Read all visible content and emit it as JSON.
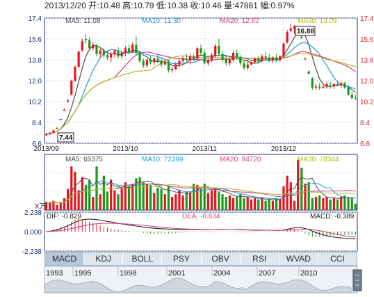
{
  "header": {
    "text": "2013/12/20 开:10.48 高:10.79 低:10.38 收:10.46 量:47881 幅:0.97%"
  },
  "price_panel": {
    "ma5_label": "MA5: 11.08",
    "ma10_label": "MA10: 11.30",
    "ma20_label": "MA20: 12.62",
    "ma30_label": "MA30: 13.09",
    "high_tag": "16.88",
    "low_tag": "7.44",
    "y_ticks": [
      "17.4",
      "15.6",
      "13.8",
      "12.0",
      "10.2",
      "8.4",
      "6.6"
    ],
    "x_ticks": [
      "2013/09",
      "2013/10",
      "2013/11",
      "2013/12"
    ]
  },
  "volume_panel": {
    "ma5_label": "MA5: 65375",
    "ma10_label": "MA10: 72399",
    "ma20_label": "MA20: 94720",
    "ma30_label": "MA30: 78344",
    "unit_label": "X万"
  },
  "macd_panel": {
    "dif_label": "DIF: -0.829",
    "dea_label": "DEA: -0.634",
    "macd_label": "MACD: -0.389",
    "y_ticks": [
      "2.238",
      "0.000",
      "-2.238"
    ]
  },
  "tabs": [
    "MACD",
    "KDJ",
    "BOLL",
    "PSY",
    "OBV",
    "RSI",
    "WVAD",
    "CCI"
  ],
  "timeline": {
    "years": [
      "1993",
      "1995",
      "1998",
      "2001",
      "2004",
      "2007",
      "2010"
    ]
  },
  "colors": {
    "up": "#e8141c",
    "down": "#179a17",
    "ma5": "#4a4a4a",
    "ma10": "#1a9bd0",
    "ma20": "#d0408a",
    "ma30": "#b5b71a",
    "axis": "#1e2f7a"
  },
  "chart_data": {
    "type": "candlestick",
    "ylim": [
      6.6,
      17.4
    ],
    "volume_ylim": [
      0,
      400000
    ],
    "macd_ylim": [
      -2.238,
      2.238
    ],
    "candles": [
      {
        "o": 7.3,
        "h": 7.5,
        "l": 7.2,
        "c": 7.4,
        "v": 60000
      },
      {
        "o": 7.4,
        "h": 7.6,
        "l": 7.3,
        "c": 7.5,
        "v": 55000
      },
      {
        "o": 7.5,
        "h": 7.8,
        "l": 7.4,
        "c": 7.7,
        "v": 70000
      },
      {
        "o": 7.9,
        "h": 8.0,
        "l": 7.8,
        "c": 7.9,
        "v": 40000
      },
      {
        "o": 8.6,
        "h": 8.7,
        "l": 8.6,
        "c": 8.7,
        "v": 60000
      },
      {
        "o": 9.4,
        "h": 9.6,
        "l": 9.4,
        "c": 9.5,
        "v": 90000
      },
      {
        "o": 10.2,
        "h": 10.4,
        "l": 10.1,
        "c": 10.3,
        "v": 160000
      },
      {
        "o": 10.8,
        "h": 12.1,
        "l": 10.7,
        "c": 12.0,
        "v": 330000
      },
      {
        "o": 12.0,
        "h": 13.3,
        "l": 11.9,
        "c": 13.2,
        "v": 290000
      },
      {
        "o": 13.2,
        "h": 14.6,
        "l": 13.1,
        "c": 14.5,
        "v": 150000
      },
      {
        "o": 14.6,
        "h": 15.6,
        "l": 14.5,
        "c": 15.4,
        "v": 250000
      },
      {
        "o": 15.6,
        "h": 16.0,
        "l": 15.2,
        "c": 15.5,
        "v": 190000
      },
      {
        "o": 15.5,
        "h": 15.7,
        "l": 14.6,
        "c": 14.8,
        "v": 230000
      },
      {
        "o": 14.8,
        "h": 15.3,
        "l": 14.6,
        "c": 15.1,
        "v": 100000
      },
      {
        "o": 15.0,
        "h": 15.2,
        "l": 14.1,
        "c": 14.3,
        "v": 330000
      },
      {
        "o": 14.3,
        "h": 14.8,
        "l": 14.0,
        "c": 14.6,
        "v": 120000
      },
      {
        "o": 14.6,
        "h": 14.8,
        "l": 14.0,
        "c": 14.2,
        "v": 260000
      },
      {
        "o": 14.2,
        "h": 14.6,
        "l": 13.8,
        "c": 14.0,
        "v": 140000
      },
      {
        "o": 14.0,
        "h": 14.5,
        "l": 13.6,
        "c": 14.3,
        "v": 230000
      },
      {
        "o": 14.3,
        "h": 14.7,
        "l": 14.0,
        "c": 14.6,
        "v": 150000
      },
      {
        "o": 14.6,
        "h": 14.9,
        "l": 13.9,
        "c": 14.1,
        "v": 120000
      },
      {
        "o": 14.1,
        "h": 14.6,
        "l": 13.9,
        "c": 14.4,
        "v": 170000
      },
      {
        "o": 14.4,
        "h": 15.0,
        "l": 14.1,
        "c": 14.8,
        "v": 210000
      },
      {
        "o": 14.8,
        "h": 15.1,
        "l": 14.3,
        "c": 14.5,
        "v": 180000
      },
      {
        "o": 14.5,
        "h": 15.3,
        "l": 14.4,
        "c": 15.1,
        "v": 200000
      },
      {
        "o": 15.1,
        "h": 15.8,
        "l": 14.2,
        "c": 14.4,
        "v": 240000
      },
      {
        "o": 14.4,
        "h": 14.6,
        "l": 13.5,
        "c": 13.7,
        "v": 250000
      },
      {
        "o": 13.7,
        "h": 13.9,
        "l": 13.1,
        "c": 13.3,
        "v": 210000
      },
      {
        "o": 13.3,
        "h": 13.9,
        "l": 13.1,
        "c": 13.8,
        "v": 200000
      },
      {
        "o": 13.8,
        "h": 14.1,
        "l": 13.4,
        "c": 13.6,
        "v": 190000
      },
      {
        "o": 13.6,
        "h": 14.0,
        "l": 13.3,
        "c": 13.9,
        "v": 130000
      },
      {
        "o": 13.9,
        "h": 14.2,
        "l": 13.5,
        "c": 13.7,
        "v": 170000
      },
      {
        "o": 13.7,
        "h": 14.0,
        "l": 13.2,
        "c": 13.4,
        "v": 160000
      },
      {
        "o": 13.4,
        "h": 13.8,
        "l": 13.3,
        "c": 13.6,
        "v": 120000
      },
      {
        "o": 13.6,
        "h": 13.8,
        "l": 12.7,
        "c": 12.9,
        "v": 180000
      },
      {
        "o": 12.9,
        "h": 13.2,
        "l": 12.7,
        "c": 13.0,
        "v": 100000
      },
      {
        "o": 13.0,
        "h": 13.6,
        "l": 12.9,
        "c": 13.4,
        "v": 120000
      },
      {
        "o": 13.4,
        "h": 13.9,
        "l": 13.2,
        "c": 13.7,
        "v": 150000
      },
      {
        "o": 13.7,
        "h": 14.1,
        "l": 13.5,
        "c": 13.9,
        "v": 110000
      },
      {
        "o": 13.9,
        "h": 14.3,
        "l": 13.6,
        "c": 13.8,
        "v": 140000
      },
      {
        "o": 13.8,
        "h": 14.3,
        "l": 13.4,
        "c": 14.1,
        "v": 130000
      },
      {
        "o": 14.1,
        "h": 14.3,
        "l": 13.7,
        "c": 13.9,
        "v": 200000
      },
      {
        "o": 13.9,
        "h": 14.9,
        "l": 13.8,
        "c": 14.8,
        "v": 190000
      },
      {
        "o": 14.8,
        "h": 15.1,
        "l": 14.2,
        "c": 14.4,
        "v": 160000
      },
      {
        "o": 14.4,
        "h": 14.7,
        "l": 13.4,
        "c": 13.5,
        "v": 200000
      },
      {
        "o": 13.5,
        "h": 14.0,
        "l": 13.3,
        "c": 13.8,
        "v": 130000
      },
      {
        "o": 13.8,
        "h": 14.4,
        "l": 13.6,
        "c": 14.2,
        "v": 150000
      },
      {
        "o": 14.2,
        "h": 15.2,
        "l": 14.0,
        "c": 15.0,
        "v": 170000
      },
      {
        "o": 15.0,
        "h": 15.6,
        "l": 14.2,
        "c": 14.3,
        "v": 140000
      },
      {
        "o": 14.3,
        "h": 14.6,
        "l": 13.6,
        "c": 13.8,
        "v": 120000
      },
      {
        "o": 13.8,
        "h": 14.1,
        "l": 13.3,
        "c": 13.5,
        "v": 100000
      },
      {
        "o": 13.5,
        "h": 14.0,
        "l": 13.3,
        "c": 13.8,
        "v": 110000
      },
      {
        "o": 13.8,
        "h": 14.6,
        "l": 13.6,
        "c": 14.4,
        "v": 90000
      },
      {
        "o": 14.4,
        "h": 14.7,
        "l": 13.8,
        "c": 14.0,
        "v": 100000
      },
      {
        "o": 14.0,
        "h": 14.2,
        "l": 13.3,
        "c": 13.5,
        "v": 120000
      },
      {
        "o": 13.5,
        "h": 13.8,
        "l": 12.9,
        "c": 13.1,
        "v": 90000
      },
      {
        "o": 13.1,
        "h": 13.6,
        "l": 12.9,
        "c": 13.4,
        "v": 100000
      },
      {
        "o": 13.4,
        "h": 13.7,
        "l": 13.3,
        "c": 13.6,
        "v": 80000
      },
      {
        "o": 13.6,
        "h": 14.0,
        "l": 13.5,
        "c": 13.9,
        "v": 90000
      },
      {
        "o": 13.9,
        "h": 14.1,
        "l": 13.5,
        "c": 13.7,
        "v": 80000
      },
      {
        "o": 13.7,
        "h": 14.3,
        "l": 13.6,
        "c": 14.1,
        "v": 90000
      },
      {
        "o": 14.1,
        "h": 14.5,
        "l": 13.8,
        "c": 14.0,
        "v": 70000
      },
      {
        "o": 14.0,
        "h": 14.3,
        "l": 13.6,
        "c": 13.8,
        "v": 80000
      },
      {
        "o": 13.8,
        "h": 14.1,
        "l": 13.5,
        "c": 14.0,
        "v": 70000
      },
      {
        "o": 14.0,
        "h": 14.3,
        "l": 13.6,
        "c": 13.8,
        "v": 90000
      },
      {
        "o": 13.8,
        "h": 14.2,
        "l": 13.6,
        "c": 14.1,
        "v": 80000
      },
      {
        "o": 14.1,
        "h": 15.3,
        "l": 14.0,
        "c": 15.2,
        "v": 180000
      },
      {
        "o": 15.3,
        "h": 16.4,
        "l": 15.2,
        "c": 16.2,
        "v": 260000
      },
      {
        "o": 16.3,
        "h": 16.9,
        "l": 16.2,
        "c": 16.5,
        "v": 210000
      },
      {
        "o": 16.5,
        "h": 16.8,
        "l": 16.0,
        "c": 16.7,
        "v": 70000
      },
      {
        "o": 16.6,
        "h": 16.7,
        "l": 16.4,
        "c": 16.6,
        "v": 380000
      },
      {
        "o": 15.8,
        "h": 15.9,
        "l": 15.6,
        "c": 15.7,
        "v": 320000
      },
      {
        "o": 13.9,
        "h": 14.0,
        "l": 13.8,
        "c": 13.9,
        "v": 200000
      },
      {
        "o": 12.8,
        "h": 12.9,
        "l": 12.5,
        "c": 12.6,
        "v": 210000
      },
      {
        "o": 12.2,
        "h": 12.3,
        "l": 11.2,
        "c": 11.4,
        "v": 90000
      },
      {
        "o": 11.4,
        "h": 11.7,
        "l": 11.2,
        "c": 11.5,
        "v": 100000
      },
      {
        "o": 11.5,
        "h": 11.8,
        "l": 11.2,
        "c": 11.4,
        "v": 110000
      },
      {
        "o": 11.4,
        "h": 11.6,
        "l": 11.3,
        "c": 11.5,
        "v": 90000
      },
      {
        "o": 11.5,
        "h": 11.9,
        "l": 11.3,
        "c": 11.7,
        "v": 100000
      },
      {
        "o": 11.6,
        "h": 11.9,
        "l": 11.3,
        "c": 11.5,
        "v": 80000
      },
      {
        "o": 11.5,
        "h": 11.8,
        "l": 11.3,
        "c": 11.7,
        "v": 90000
      },
      {
        "o": 11.7,
        "h": 11.9,
        "l": 11.5,
        "c": 11.6,
        "v": 80000
      },
      {
        "o": 11.6,
        "h": 11.9,
        "l": 11.4,
        "c": 11.8,
        "v": 100000
      },
      {
        "o": 11.8,
        "h": 11.9,
        "l": 11.3,
        "c": 11.4,
        "v": 110000
      },
      {
        "o": 11.4,
        "h": 11.6,
        "l": 10.7,
        "c": 10.8,
        "v": 100000
      },
      {
        "o": 10.8,
        "h": 11.0,
        "l": 10.4,
        "c": 10.5,
        "v": 90000
      },
      {
        "o": 10.48,
        "h": 10.79,
        "l": 10.38,
        "c": 10.46,
        "v": 47881
      }
    ],
    "macd_bars": [
      0.05,
      0.1,
      0.2,
      0.3,
      0.45,
      0.6,
      0.8,
      1.1,
      1.4,
      1.55,
      1.45,
      1.3,
      1.15,
      1.0,
      0.85,
      0.7,
      0.55,
      0.45,
      0.35,
      0.28,
      0.2,
      0.15,
      0.1,
      0.06,
      0.02,
      -0.02,
      -0.08,
      -0.14,
      -0.2,
      -0.22,
      -0.24,
      -0.22,
      -0.2,
      -0.18,
      -0.2,
      -0.22,
      -0.18,
      -0.14,
      -0.1,
      -0.08,
      -0.06,
      -0.05,
      -0.03,
      -0.02,
      -0.04,
      -0.06,
      -0.05,
      -0.03,
      -0.02,
      -0.01,
      -0.03,
      -0.05,
      -0.06,
      -0.05,
      -0.07,
      -0.08,
      -0.07,
      -0.06,
      -0.05,
      -0.04,
      -0.03,
      -0.04,
      -0.05,
      -0.04,
      -0.05,
      -0.04,
      0.05,
      0.15,
      0.25,
      0.3,
      0.28,
      0.1,
      -0.2,
      -0.45,
      -0.6,
      -0.65,
      -0.62,
      -0.55,
      -0.5,
      -0.46,
      -0.43,
      -0.4,
      -0.38,
      -0.38,
      -0.39,
      -0.39,
      -0.39
    ],
    "dif": [
      0.0,
      0.05,
      0.12,
      0.22,
      0.35,
      0.5,
      0.68,
      0.88,
      1.08,
      1.25,
      1.36,
      1.42,
      1.43,
      1.42,
      1.38,
      1.32,
      1.25,
      1.18,
      1.1,
      1.02,
      0.95,
      0.88,
      0.82,
      0.76,
      0.7,
      0.64,
      0.58,
      0.52,
      0.46,
      0.42,
      0.38,
      0.35,
      0.33,
      0.31,
      0.29,
      0.27,
      0.26,
      0.25,
      0.24,
      0.24,
      0.23,
      0.23,
      0.24,
      0.25,
      0.25,
      0.24,
      0.24,
      0.25,
      0.26,
      0.26,
      0.25,
      0.24,
      0.23,
      0.22,
      0.21,
      0.2,
      0.19,
      0.18,
      0.17,
      0.17,
      0.16,
      0.16,
      0.15,
      0.15,
      0.14,
      0.14,
      0.18,
      0.26,
      0.36,
      0.44,
      0.48,
      0.45,
      0.36,
      0.22,
      0.06,
      -0.1,
      -0.24,
      -0.36,
      -0.46,
      -0.55,
      -0.62,
      -0.68,
      -0.72,
      -0.76,
      -0.79,
      -0.81,
      -0.829
    ],
    "dea": [
      0.0,
      0.02,
      0.04,
      0.08,
      0.12,
      0.18,
      0.26,
      0.34,
      0.44,
      0.54,
      0.64,
      0.73,
      0.8,
      0.86,
      0.9,
      0.93,
      0.95,
      0.96,
      0.96,
      0.95,
      0.93,
      0.91,
      0.89,
      0.86,
      0.83,
      0.8,
      0.76,
      0.72,
      0.68,
      0.63,
      0.58,
      0.54,
      0.5,
      0.46,
      0.43,
      0.4,
      0.37,
      0.34,
      0.32,
      0.3,
      0.29,
      0.28,
      0.27,
      0.26,
      0.26,
      0.26,
      0.25,
      0.25,
      0.25,
      0.25,
      0.25,
      0.25,
      0.24,
      0.24,
      0.23,
      0.22,
      0.21,
      0.2,
      0.19,
      0.18,
      0.18,
      0.17,
      0.17,
      0.16,
      0.16,
      0.15,
      0.15,
      0.16,
      0.18,
      0.21,
      0.24,
      0.27,
      0.28,
      0.27,
      0.23,
      0.17,
      0.1,
      0.02,
      -0.07,
      -0.16,
      -0.25,
      -0.33,
      -0.41,
      -0.48,
      -0.54,
      -0.59,
      -0.634
    ]
  }
}
